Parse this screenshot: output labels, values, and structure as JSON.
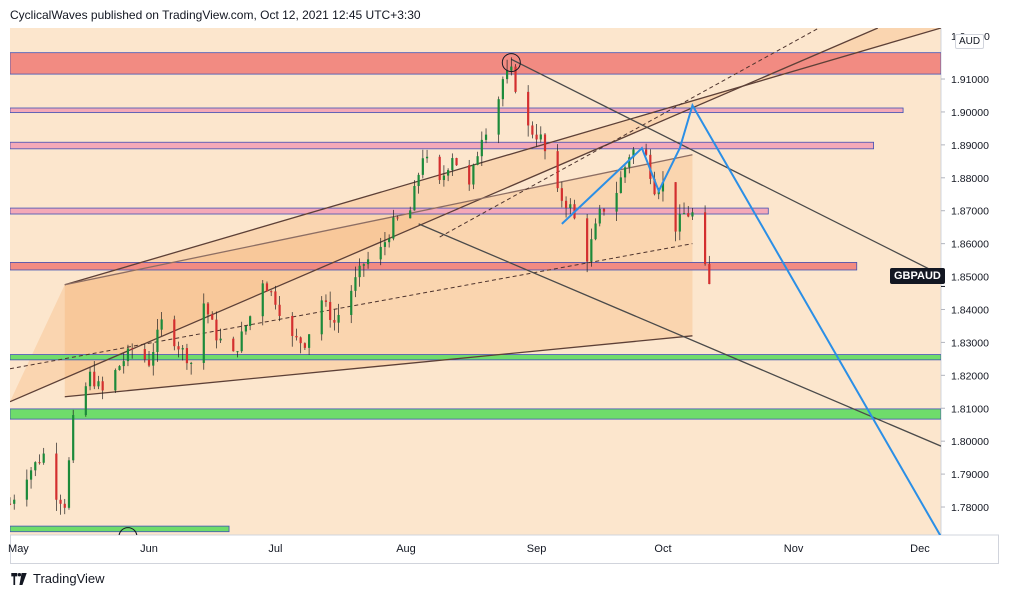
{
  "header": {
    "attribution": "CyclicalWaves published on TradingView.com, Oct 12, 2021 12:45 UTC+3:30"
  },
  "footer": {
    "brand": "TradingView",
    "logo_icon": "tradingview-logo-icon"
  },
  "chart_data": {
    "type": "candlestick",
    "symbol_label": "GBPAUD",
    "currency_label": "AUD",
    "last_price": 1.847,
    "y_axis": {
      "ylim": [
        1.7715,
        1.9255
      ],
      "ticks": [
        "1.78000",
        "1.79000",
        "1.80000",
        "1.81000",
        "1.82000",
        "1.83000",
        "1.84000",
        "1.85000",
        "1.86000",
        "1.87000",
        "1.88000",
        "1.89000",
        "1.90000",
        "1.91000"
      ],
      "top_partial_tick": "1.9",
      "top_partial_tick_suffix": "0"
    },
    "x_axis": {
      "xlim": [
        "2021-04-29",
        "2021-12-06"
      ],
      "ticks": [
        {
          "date": "2021-05-01",
          "label": "May"
        },
        {
          "date": "2021-06-01",
          "label": "Jun"
        },
        {
          "date": "2021-07-01",
          "label": "Jul"
        },
        {
          "date": "2021-08-01",
          "label": "Aug"
        },
        {
          "date": "2021-09-01",
          "label": "Sep"
        },
        {
          "date": "2021-10-01",
          "label": "Oct"
        },
        {
          "date": "2021-11-01",
          "label": "Nov"
        },
        {
          "date": "2021-12-01",
          "label": "Dec"
        }
      ]
    },
    "price_path": [
      [
        "2021-04-29",
        1.781
      ],
      [
        "2021-05-03",
        1.79
      ],
      [
        "2021-05-07",
        1.796
      ],
      [
        "2021-05-10",
        1.784
      ],
      [
        "2021-05-12",
        1.781
      ],
      [
        "2021-05-14",
        1.806
      ],
      [
        "2021-05-18",
        1.82
      ],
      [
        "2021-05-21",
        1.815
      ],
      [
        "2021-05-25",
        1.823
      ],
      [
        "2021-05-28",
        1.828
      ],
      [
        "2021-06-01",
        1.824
      ],
      [
        "2021-06-04",
        1.836
      ],
      [
        "2021-06-08",
        1.829
      ],
      [
        "2021-06-11",
        1.824
      ],
      [
        "2021-06-14",
        1.842
      ],
      [
        "2021-06-17",
        1.832
      ],
      [
        "2021-06-21",
        1.826
      ],
      [
        "2021-06-25",
        1.838
      ],
      [
        "2021-06-28",
        1.849
      ],
      [
        "2021-07-01",
        1.843
      ],
      [
        "2021-07-05",
        1.831
      ],
      [
        "2021-07-08",
        1.83
      ],
      [
        "2021-07-12",
        1.843
      ],
      [
        "2021-07-15",
        1.836
      ],
      [
        "2021-07-19",
        1.846
      ],
      [
        "2021-07-22",
        1.854
      ],
      [
        "2021-07-26",
        1.858
      ],
      [
        "2021-07-29",
        1.866
      ],
      [
        "2021-08-02",
        1.87
      ],
      [
        "2021-08-05",
        1.887
      ],
      [
        "2021-08-09",
        1.878
      ],
      [
        "2021-08-12",
        1.887
      ],
      [
        "2021-08-16",
        1.877
      ],
      [
        "2021-08-19",
        1.893
      ],
      [
        "2021-08-22",
        1.899
      ],
      [
        "2021-08-24",
        1.91
      ],
      [
        "2021-08-26",
        1.912
      ],
      [
        "2021-08-30",
        1.895
      ],
      [
        "2021-09-02",
        1.892
      ],
      [
        "2021-09-06",
        1.875
      ],
      [
        "2021-09-09",
        1.871
      ],
      [
        "2021-09-13",
        1.856
      ],
      [
        "2021-09-16",
        1.869
      ],
      [
        "2021-09-20",
        1.876
      ],
      [
        "2021-09-23",
        1.887
      ],
      [
        "2021-09-26",
        1.891
      ],
      [
        "2021-09-29",
        1.877
      ],
      [
        "2021-10-01",
        1.878
      ],
      [
        "2021-10-04",
        1.865
      ],
      [
        "2021-10-06",
        1.869
      ],
      [
        "2021-10-08",
        1.869
      ],
      [
        "2021-10-10",
        1.857
      ],
      [
        "2021-10-12",
        1.847
      ]
    ],
    "zones": [
      {
        "from_date": "2021-04-29",
        "to_date": "2021-12-06",
        "y_low": 1.9115,
        "y_high": 1.918,
        "color": "#f28b82"
      },
      {
        "from_date": "2021-04-29",
        "to_date": "2021-11-27",
        "y_low": 1.8998,
        "y_high": 1.9012,
        "color": "#f4a9b8"
      },
      {
        "from_date": "2021-04-29",
        "to_date": "2021-11-20",
        "y_low": 1.8888,
        "y_high": 1.8908,
        "color": "#f4a9b8"
      },
      {
        "from_date": "2021-04-29",
        "to_date": "2021-10-26",
        "y_low": 1.869,
        "y_high": 1.8708,
        "color": "#f4a9b8"
      },
      {
        "from_date": "2021-04-29",
        "to_date": "2021-11-16",
        "y_low": 1.852,
        "y_high": 1.8543,
        "color": "#f28b82"
      },
      {
        "from_date": "2021-04-29",
        "to_date": "2021-12-06",
        "y_low": 1.8247,
        "y_high": 1.8263,
        "color": "#6fdc6b"
      },
      {
        "from_date": "2021-04-29",
        "to_date": "2021-12-06",
        "y_low": 1.8067,
        "y_high": 1.8098,
        "color": "#6fdc6b"
      },
      {
        "from_date": "2021-04-29",
        "to_date": "2021-06-20",
        "y_low": 1.7725,
        "y_high": 1.7742,
        "color": "#6fdc6b"
      }
    ],
    "projection_path": [
      [
        "2021-09-07",
        1.866
      ],
      [
        "2021-09-26",
        1.889
      ],
      [
        "2021-09-30",
        1.876
      ],
      [
        "2021-10-05",
        1.889
      ],
      [
        "2021-10-08",
        1.902
      ],
      [
        "2021-12-06",
        1.771
      ]
    ],
    "trendlines": [
      {
        "from": [
          "2021-05-12",
          1.8135
        ],
        "to": [
          "2021-10-08",
          1.832
        ],
        "color": "#5d4037",
        "dash": false
      },
      {
        "from": [
          "2021-04-29",
          1.812
        ],
        "to": [
          "2021-11-21",
          1.9255
        ],
        "color": "#5d4037",
        "dash": false
      },
      {
        "from": [
          "2021-05-12",
          1.8475
        ],
        "to": [
          "2021-12-06",
          1.9255
        ],
        "color": "#5d4037",
        "dash": false
      },
      {
        "from": [
          "2021-05-12",
          1.8475
        ],
        "to": [
          "2021-10-08",
          1.887
        ],
        "color": "#8d6e63",
        "dash": false
      },
      {
        "from": [
          "2021-04-29",
          1.822
        ],
        "to": [
          "2021-10-08",
          1.86
        ],
        "color": "#4e342e",
        "dash": true
      },
      {
        "from": [
          "2021-08-09",
          1.862
        ],
        "to": [
          "2021-11-07",
          1.9255
        ],
        "color": "#4e342e",
        "dash": true
      },
      {
        "from": [
          "2021-08-26",
          1.916
        ],
        "to": [
          "2021-12-06",
          1.8505
        ],
        "color": "#4a4a4a",
        "dash": false
      },
      {
        "from": [
          "2021-08-04",
          1.866
        ],
        "to": [
          "2021-12-06",
          1.7985
        ],
        "color": "#4a4a4a",
        "dash": false
      }
    ],
    "circle_markers": [
      {
        "date": "2021-08-26",
        "value": 1.915
      },
      {
        "date": "2021-05-27",
        "value": 1.771
      }
    ]
  }
}
